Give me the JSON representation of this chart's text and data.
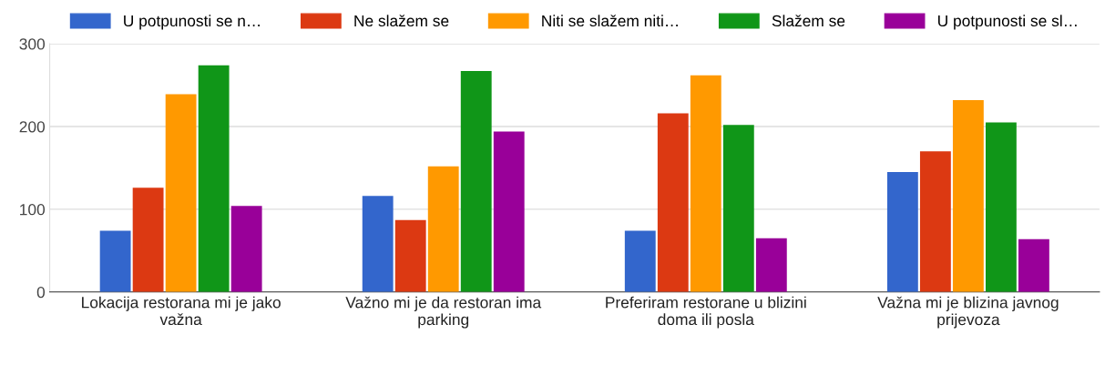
{
  "chart_data": {
    "type": "bar",
    "categories": [
      "Lokacija restorana mi je jako važna",
      "Važno mi je da restoran ima parking",
      "Preferiram restorane u blizini doma ili posla",
      "Važna mi je blizina javnog prijevoza"
    ],
    "series": [
      {
        "name": "U potpunosti se n…",
        "color": "#3366cc",
        "values": [
          74,
          116,
          74,
          145
        ]
      },
      {
        "name": "Ne slažem se",
        "color": "#dc3912",
        "values": [
          126,
          87,
          216,
          170
        ]
      },
      {
        "name": "Niti se slažem niti…",
        "color": "#ff9900",
        "values": [
          239,
          152,
          262,
          232
        ]
      },
      {
        "name": "Slažem se",
        "color": "#109618",
        "values": [
          274,
          267,
          202,
          205
        ]
      },
      {
        "name": "U potpunosti se sl…",
        "color": "#990099",
        "values": [
          104,
          194,
          65,
          64
        ]
      }
    ],
    "ylim": [
      0,
      300
    ],
    "yticks": [
      0,
      100,
      200,
      300
    ],
    "grid": "y",
    "legend": "top"
  }
}
